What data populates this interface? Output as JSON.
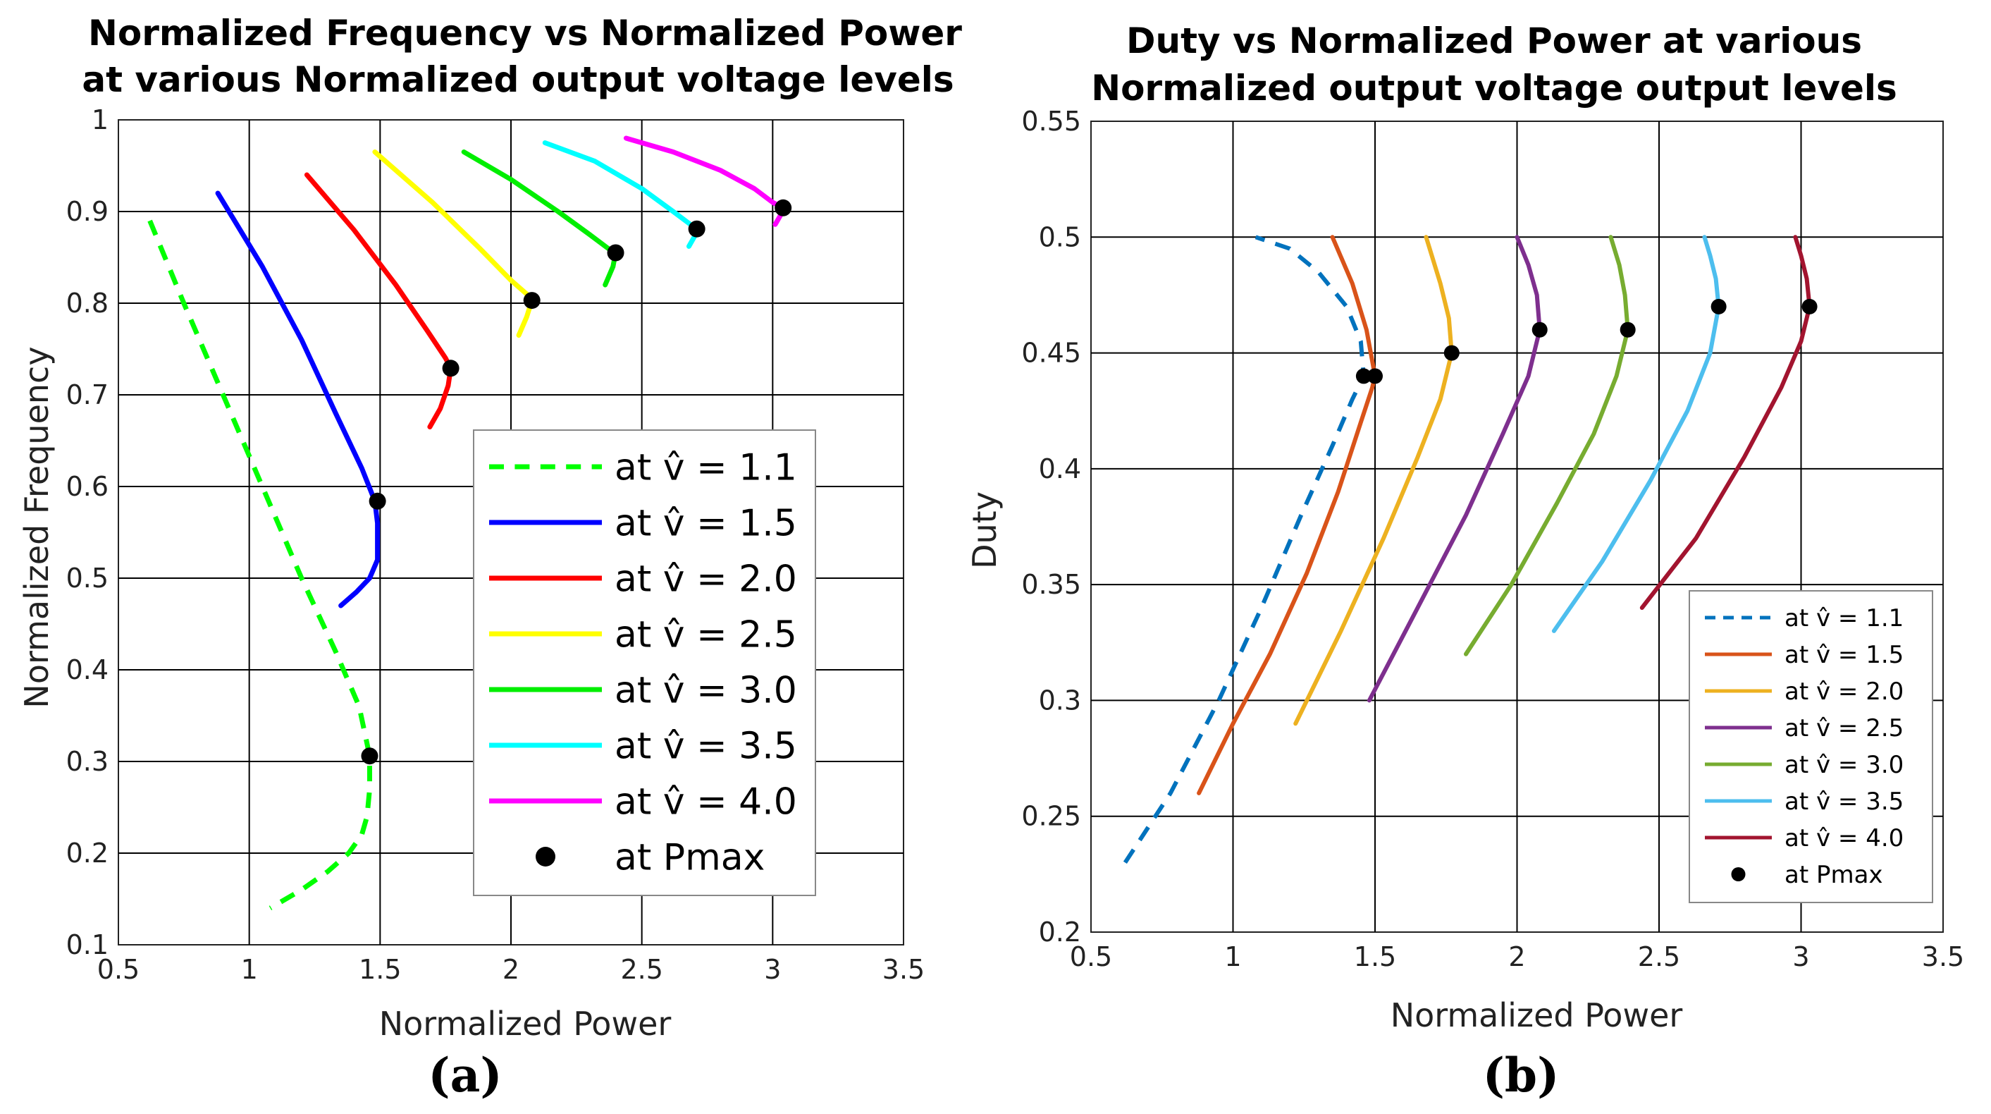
{
  "panel_labels": [
    "(a)",
    "(b)"
  ],
  "chart_data": [
    {
      "type": "line",
      "title_lines": [
        "Normalized Frequency vs Normalized Power",
        "at  various Normalized output voltage levels"
      ],
      "xlabel": "Normalized Power",
      "ylabel": "Normalized Frequency",
      "xlim": [
        0.5,
        3.5
      ],
      "ylim": [
        0.1,
        1.0
      ],
      "xticks": [
        "0.5",
        "1",
        "1.5",
        "2",
        "2.5",
        "3",
        "3.5"
      ],
      "yticks": [
        "0.1",
        "0.2",
        "0.3",
        "0.4",
        "0.5",
        "0.6",
        "0.7",
        "0.8",
        "0.9",
        "1"
      ],
      "grid": true,
      "legend_position": "lower-right",
      "series": [
        {
          "name": "at  v̂ = 1.1",
          "color": "#00ff00",
          "dashed": true,
          "x": [
            0.62,
            0.75,
            0.9,
            1.05,
            1.2,
            1.33,
            1.42,
            1.46,
            1.46,
            1.45,
            1.43,
            1.38,
            1.3,
            1.2,
            1.08
          ],
          "y": [
            0.89,
            0.8,
            0.7,
            0.6,
            0.5,
            0.42,
            0.36,
            0.306,
            0.27,
            0.24,
            0.22,
            0.2,
            0.18,
            0.16,
            0.14
          ]
        },
        {
          "name": "at  v̂ = 1.5",
          "color": "#0000ff",
          "x": [
            0.88,
            1.05,
            1.2,
            1.33,
            1.43,
            1.48,
            1.49,
            1.49,
            1.46,
            1.41,
            1.35
          ],
          "y": [
            0.92,
            0.84,
            0.76,
            0.68,
            0.62,
            0.584,
            0.56,
            0.52,
            0.5,
            0.485,
            0.47
          ]
        },
        {
          "name": "at  v̂ = 2.0",
          "color": "#ff0000",
          "x": [
            1.22,
            1.4,
            1.56,
            1.68,
            1.75,
            1.77,
            1.76,
            1.73,
            1.69
          ],
          "y": [
            0.94,
            0.88,
            0.82,
            0.77,
            0.74,
            0.729,
            0.71,
            0.685,
            0.665
          ]
        },
        {
          "name": "at  v̂ = 2.5",
          "color": "#ffff00",
          "x": [
            1.48,
            1.7,
            1.88,
            2.0,
            2.06,
            2.08,
            2.06,
            2.03
          ],
          "y": [
            0.965,
            0.91,
            0.86,
            0.825,
            0.81,
            0.803,
            0.785,
            0.765
          ]
        },
        {
          "name": "at  v̂ = 3.0",
          "color": "#00ee00",
          "x": [
            1.82,
            2.0,
            2.18,
            2.3,
            2.37,
            2.4,
            2.39,
            2.36
          ],
          "y": [
            0.965,
            0.935,
            0.9,
            0.875,
            0.86,
            0.855,
            0.84,
            0.82
          ]
        },
        {
          "name": "at  v̂ = 3.5",
          "color": "#00ffff",
          "x": [
            2.13,
            2.32,
            2.5,
            2.62,
            2.69,
            2.71,
            2.7,
            2.68
          ],
          "y": [
            0.975,
            0.955,
            0.925,
            0.9,
            0.885,
            0.881,
            0.872,
            0.862
          ]
        },
        {
          "name": "at  v̂ = 4.0",
          "color": "#ff00ff",
          "x": [
            2.44,
            2.62,
            2.8,
            2.93,
            3.0,
            3.04,
            3.03,
            3.01
          ],
          "y": [
            0.98,
            0.965,
            0.945,
            0.925,
            0.91,
            0.904,
            0.896,
            0.886
          ]
        }
      ],
      "markers": {
        "name": "at Pmax",
        "color": "#000000",
        "x": [
          1.46,
          1.49,
          1.77,
          2.08,
          2.4,
          2.71,
          3.04
        ],
        "y": [
          0.306,
          0.584,
          0.729,
          0.803,
          0.855,
          0.881,
          0.904
        ]
      }
    },
    {
      "type": "line",
      "title_lines": [
        "Duty vs Normalized Power at various",
        "Normalized output voltage output levels"
      ],
      "xlabel": "Normalized Power",
      "ylabel": "Duty",
      "xlim": [
        0.5,
        3.5
      ],
      "ylim": [
        0.2,
        0.55
      ],
      "xticks": [
        "0.5",
        "1",
        "1.5",
        "2",
        "2.5",
        "3",
        "3.5"
      ],
      "yticks": [
        "0.2",
        "0.25",
        "0.3",
        "0.35",
        "0.4",
        "0.45",
        "0.5",
        "0.55"
      ],
      "grid": true,
      "legend_position": "lower-right",
      "series": [
        {
          "name": "at  v̂ = 1.1",
          "color": "#0072bd",
          "dashed": true,
          "x": [
            0.62,
            0.78,
            0.95,
            1.1,
            1.24,
            1.35,
            1.42,
            1.46,
            1.45,
            1.4,
            1.3,
            1.2,
            1.08
          ],
          "y": [
            0.23,
            0.26,
            0.3,
            0.34,
            0.38,
            0.41,
            0.43,
            0.44,
            0.455,
            0.47,
            0.485,
            0.495,
            0.5
          ]
        },
        {
          "name": "at  v̂ = 1.5",
          "color": "#d95319",
          "x": [
            0.88,
            1.0,
            1.13,
            1.26,
            1.37,
            1.45,
            1.49,
            1.5,
            1.47,
            1.42,
            1.35
          ],
          "y": [
            0.26,
            0.29,
            0.32,
            0.355,
            0.39,
            0.42,
            0.435,
            0.44,
            0.46,
            0.48,
            0.5
          ]
        },
        {
          "name": "at  v̂ = 2.0",
          "color": "#edb120",
          "x": [
            1.22,
            1.38,
            1.53,
            1.65,
            1.73,
            1.77,
            1.76,
            1.73,
            1.68
          ],
          "y": [
            0.29,
            0.33,
            0.37,
            0.405,
            0.43,
            0.45,
            0.465,
            0.48,
            0.5
          ]
        },
        {
          "name": "at  v̂ = 2.5",
          "color": "#7e2f8e",
          "x": [
            1.48,
            1.65,
            1.82,
            1.95,
            2.04,
            2.08,
            2.07,
            2.04,
            2.0
          ],
          "y": [
            0.3,
            0.34,
            0.38,
            0.415,
            0.44,
            0.46,
            0.475,
            0.488,
            0.5
          ]
        },
        {
          "name": "at  v̂ = 3.0",
          "color": "#77ac30",
          "x": [
            1.82,
            1.98,
            2.14,
            2.27,
            2.35,
            2.39,
            2.38,
            2.36,
            2.33
          ],
          "y": [
            0.32,
            0.35,
            0.385,
            0.415,
            0.44,
            0.46,
            0.475,
            0.488,
            0.5
          ]
        },
        {
          "name": "at  v̂ = 3.5",
          "color": "#4dbeee",
          "x": [
            2.13,
            2.3,
            2.47,
            2.6,
            2.68,
            2.71,
            2.7,
            2.68,
            2.66
          ],
          "y": [
            0.33,
            0.36,
            0.395,
            0.425,
            0.45,
            0.47,
            0.482,
            0.492,
            0.5
          ]
        },
        {
          "name": "at  v̂ = 4.0",
          "color": "#a2142f",
          "x": [
            2.44,
            2.63,
            2.8,
            2.93,
            3.0,
            3.03,
            3.02,
            3.0,
            2.98
          ],
          "y": [
            0.34,
            0.37,
            0.405,
            0.435,
            0.455,
            0.47,
            0.482,
            0.492,
            0.5
          ]
        }
      ],
      "markers": {
        "name": "at Pmax",
        "color": "#000000",
        "x": [
          1.46,
          1.5,
          1.77,
          2.08,
          2.39,
          2.71,
          3.03
        ],
        "y": [
          0.44,
          0.44,
          0.45,
          0.46,
          0.46,
          0.47,
          0.47
        ]
      }
    }
  ]
}
